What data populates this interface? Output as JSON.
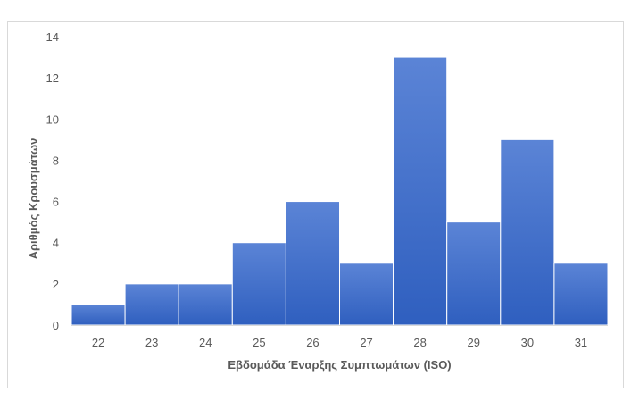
{
  "chart_data": {
    "type": "bar",
    "title": "",
    "xlabel": "Εβδομάδα Έναρξης Συμπτωμάτων (ISO)",
    "ylabel": "Αριθμός Κρουσμάτων",
    "categories": [
      "22",
      "23",
      "24",
      "25",
      "26",
      "27",
      "28",
      "29",
      "30",
      "31"
    ],
    "values": [
      1,
      2,
      2,
      4,
      6,
      3,
      13,
      5,
      9,
      3
    ],
    "ylim": [
      0,
      14
    ],
    "yticks": [
      "0",
      "2",
      "4",
      "6",
      "8",
      "10",
      "12",
      "14"
    ],
    "grid": false,
    "legend": "none",
    "colors": {
      "bar_top": "#5b84d6",
      "bar_bottom": "#2f5fbf",
      "bar_border": "#ffffff",
      "axis": "#d9d9d9",
      "text": "#595959"
    }
  }
}
